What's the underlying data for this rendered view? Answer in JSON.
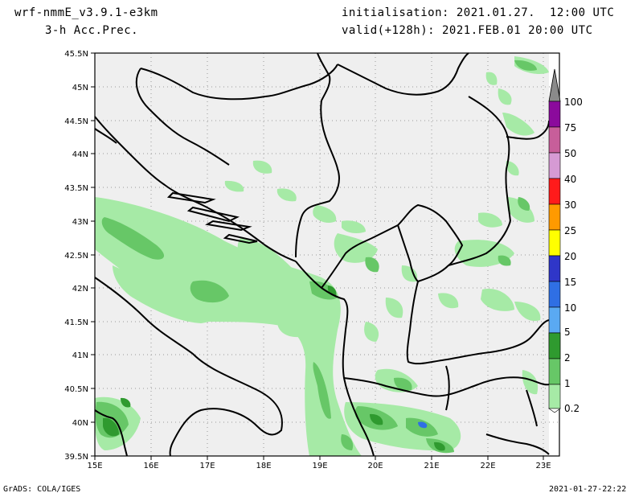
{
  "header": {
    "model": "wrf-nmmE_v3.9.1-e3km",
    "field": "3-h Acc.Prec.",
    "init": "initialisation: 2021.01.27.  12:00 UTC",
    "valid": "valid(+128h): 2021.FEB.01 20:00 UTC"
  },
  "footer": {
    "left": "GrADS: COLA/IGES",
    "right": "2021-01-27-22:22"
  },
  "axes": {
    "lat_labels": [
      "45.5N",
      "45N",
      "44.5N",
      "44N",
      "43.5N",
      "43N",
      "42.5N",
      "42N",
      "41.5N",
      "41N",
      "40.5N",
      "40N",
      "39.5N"
    ],
    "lon_labels": [
      "15E",
      "16E",
      "17E",
      "18E",
      "19E",
      "20E",
      "21E",
      "22E",
      "23E"
    ]
  },
  "colorbar": {
    "labels": [
      "100",
      "75",
      "50",
      "40",
      "30",
      "25",
      "20",
      "15",
      "10",
      "5",
      "2",
      "1",
      "0.2"
    ],
    "colors": [
      "#8a8a8a",
      "#8b0a9c",
      "#c75e9a",
      "#d69ad4",
      "#ff1b1b",
      "#ff9a00",
      "#ffff00",
      "#2f36c8",
      "#2f6fe4",
      "#5aa9f2",
      "#a8d8f8",
      "#2f9a2f",
      "#67c767",
      "#a6eaa6"
    ]
  },
  "map": {
    "land_color": "#efefef",
    "precip_colors": {
      "light": "#a6eaa6",
      "medium": "#67c767",
      "heavy": "#2f9a2f"
    }
  }
}
